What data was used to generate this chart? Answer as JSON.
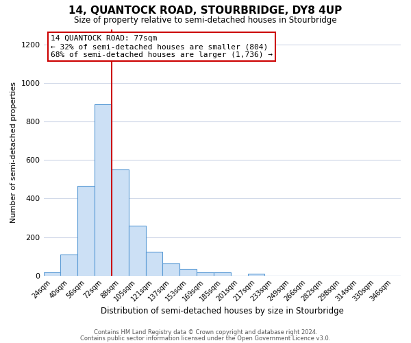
{
  "title": "14, QUANTOCK ROAD, STOURBRIDGE, DY8 4UP",
  "subtitle": "Size of property relative to semi-detached houses in Stourbridge",
  "xlabel": "Distribution of semi-detached houses by size in Stourbridge",
  "ylabel": "Number of semi-detached properties",
  "bin_labels": [
    "24sqm",
    "40sqm",
    "56sqm",
    "72sqm",
    "88sqm",
    "105sqm",
    "121sqm",
    "137sqm",
    "153sqm",
    "169sqm",
    "185sqm",
    "201sqm",
    "217sqm",
    "233sqm",
    "249sqm",
    "266sqm",
    "282sqm",
    "298sqm",
    "314sqm",
    "330sqm",
    "346sqm"
  ],
  "bar_values": [
    15,
    110,
    465,
    890,
    550,
    260,
    125,
    62,
    35,
    18,
    18,
    0,
    10,
    0,
    0,
    0,
    0,
    0,
    0,
    0,
    0
  ],
  "bar_color": "#cce0f5",
  "bar_edge_color": "#5b9bd5",
  "highlight_bin_index": 3,
  "highlight_color": "#cc0000",
  "ylim": [
    0,
    1280
  ],
  "yticks": [
    0,
    200,
    400,
    600,
    800,
    1000,
    1200
  ],
  "annotation_title": "14 QUANTOCK ROAD: 77sqm",
  "annotation_line1": "← 32% of semi-detached houses are smaller (804)",
  "annotation_line2": "68% of semi-detached houses are larger (1,736) →",
  "footer_line1": "Contains HM Land Registry data © Crown copyright and database right 2024.",
  "footer_line2": "Contains public sector information licensed under the Open Government Licence v3.0.",
  "background_color": "#ffffff",
  "grid_color": "#d0d8e8"
}
